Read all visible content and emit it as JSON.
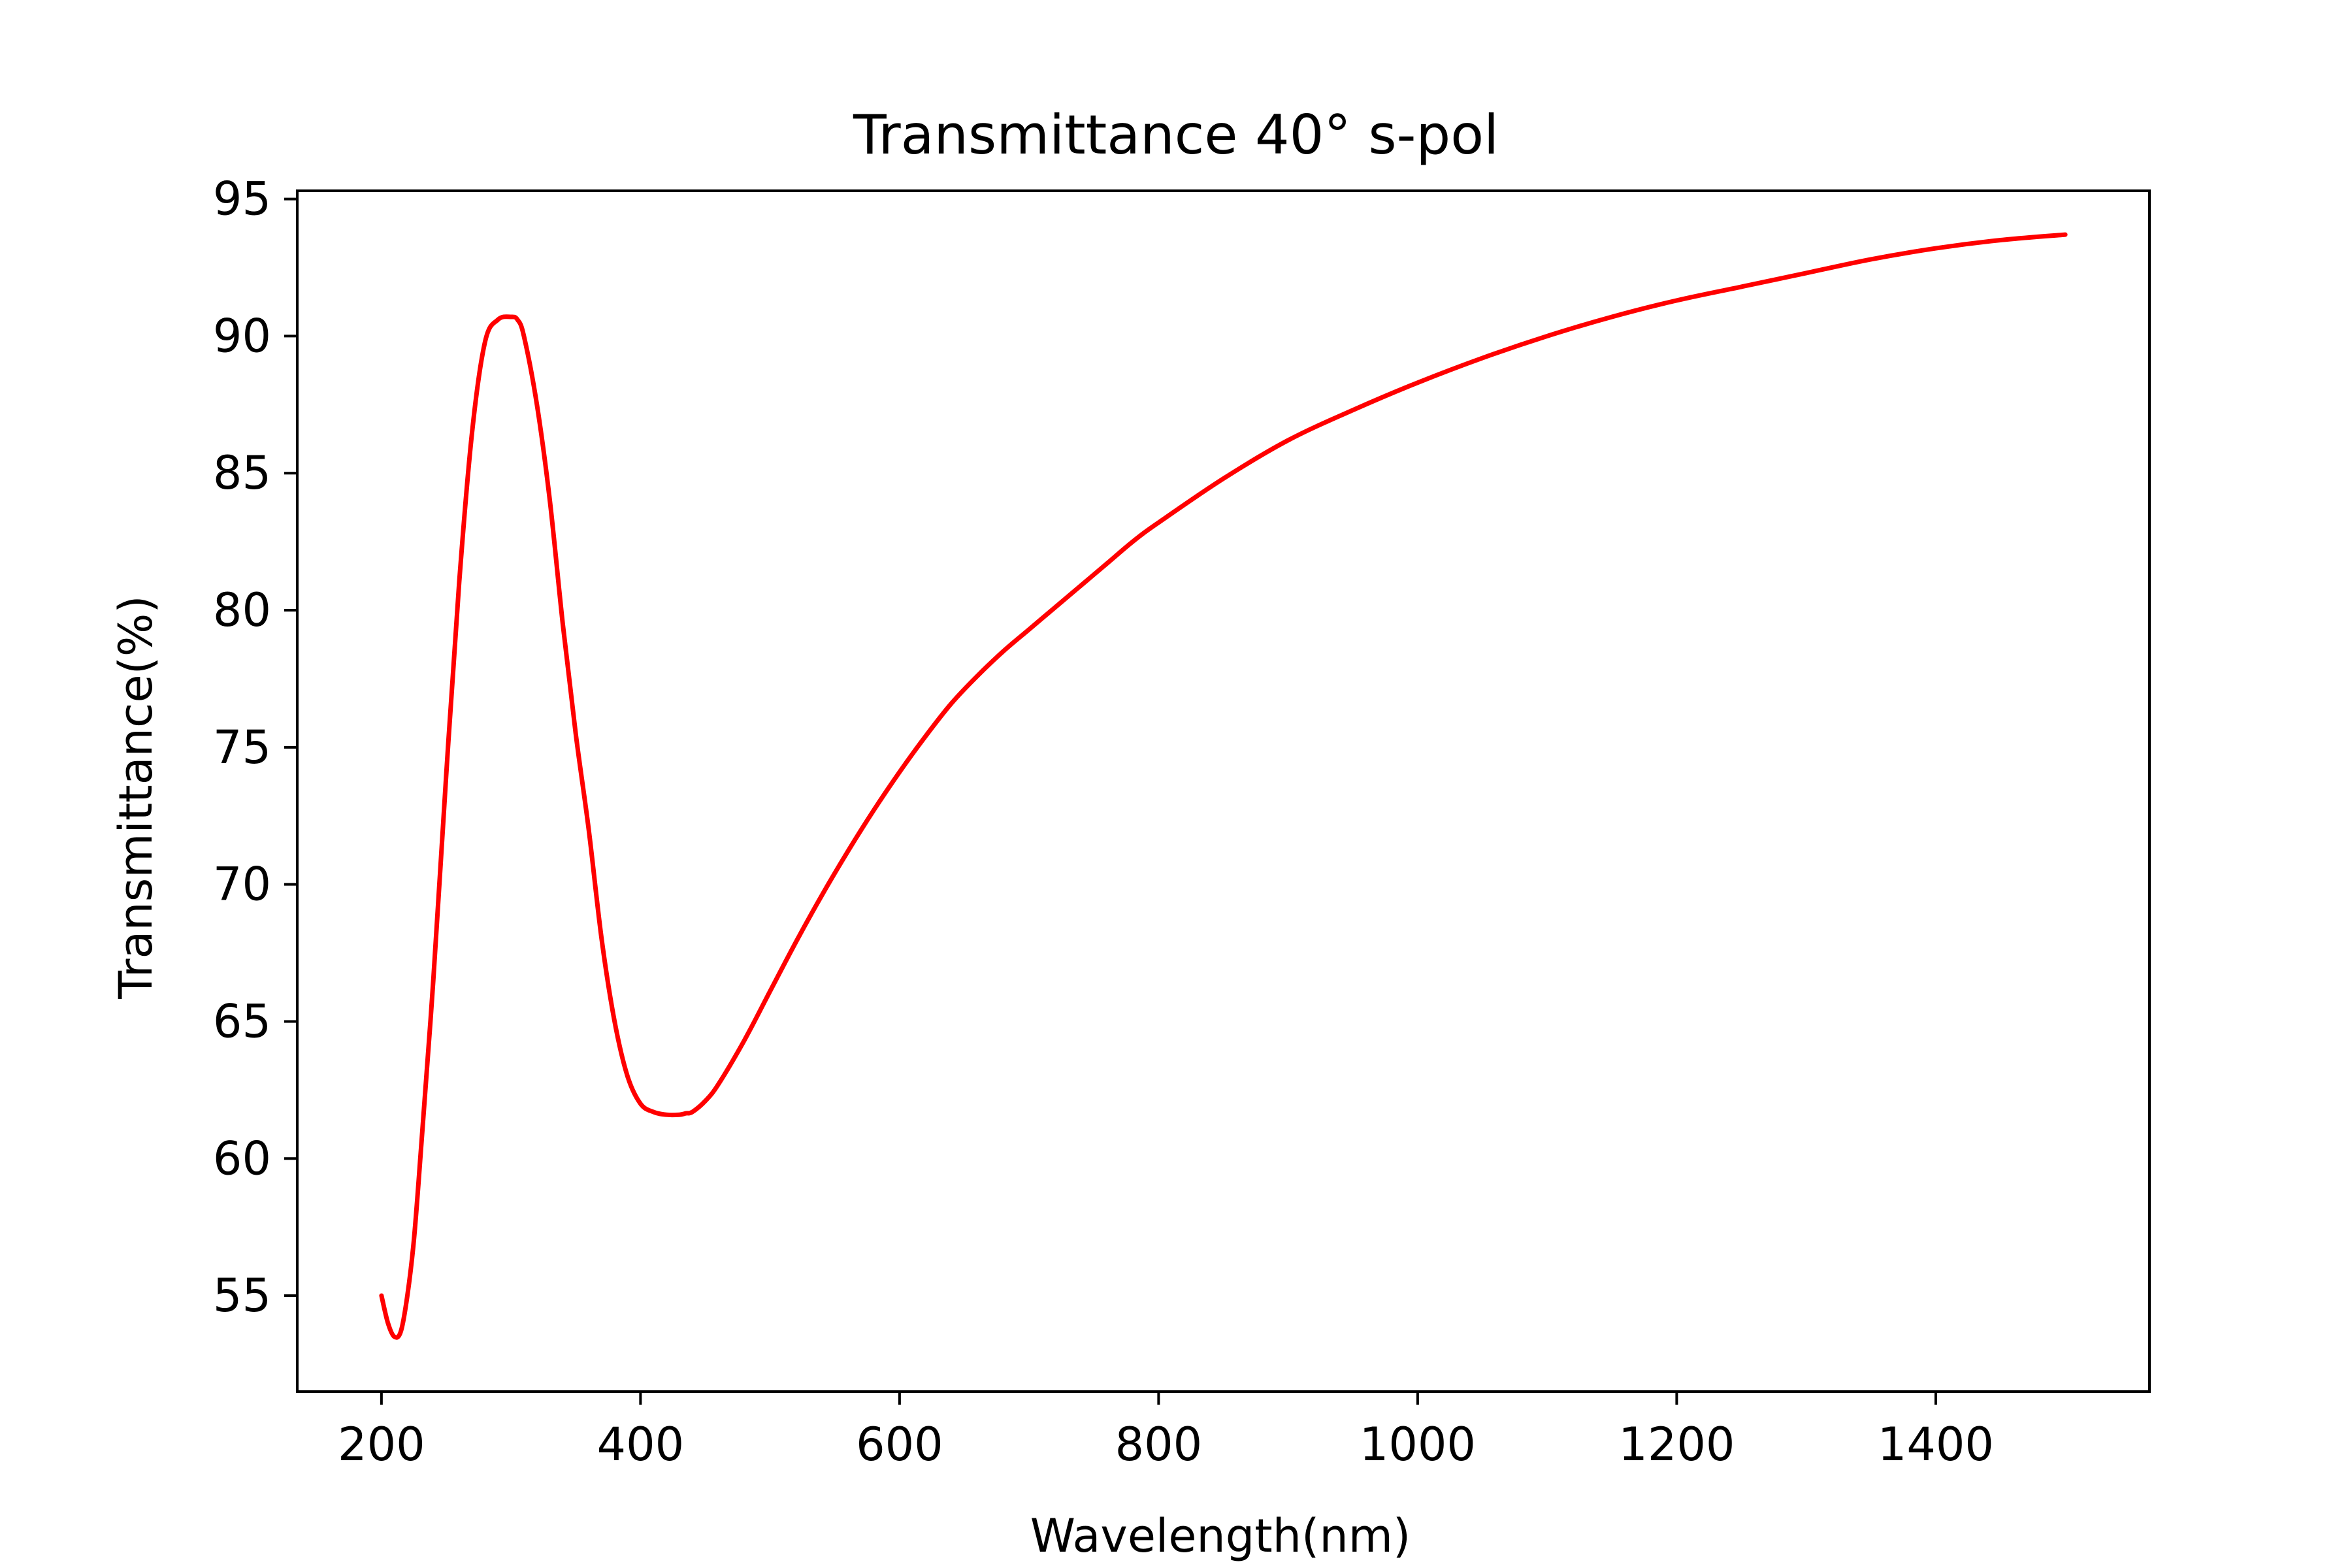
{
  "chart_data": {
    "type": "line",
    "title": "Transmittance 40° s-pol",
    "xlabel": "Wavelength(nm)",
    "ylabel": "Transmittance(%)",
    "xlim": [
      135,
      1565
    ],
    "ylim": [
      51.5,
      95.3
    ],
    "xticks": [
      200,
      400,
      600,
      800,
      1000,
      1200,
      1400
    ],
    "yticks": [
      55,
      60,
      65,
      70,
      75,
      80,
      85,
      90,
      95
    ],
    "grid": false,
    "legend": "none",
    "series": [
      {
        "color": "#ff0000",
        "x": [
          200,
          205,
          210,
          215,
          220,
          225,
          230,
          240,
          250,
          260,
          270,
          280,
          290,
          300,
          305,
          310,
          320,
          330,
          340,
          350,
          360,
          370,
          380,
          390,
          400,
          410,
          420,
          430,
          435,
          440,
          450,
          460,
          480,
          500,
          520,
          540,
          560,
          580,
          600,
          620,
          640,
          660,
          680,
          700,
          720,
          740,
          760,
          780,
          800,
          850,
          900,
          950,
          1000,
          1050,
          1100,
          1150,
          1200,
          1250,
          1300,
          1350,
          1400,
          1450,
          1500
        ],
        "y": [
          55.0,
          54.0,
          53.5,
          53.7,
          55.0,
          57.0,
          60.0,
          66.5,
          74.0,
          81.0,
          86.5,
          89.8,
          90.6,
          90.7,
          90.6,
          90.0,
          87.5,
          84.0,
          79.5,
          75.5,
          72.0,
          68.0,
          65.0,
          63.0,
          62.0,
          61.7,
          61.6,
          61.6,
          61.65,
          61.7,
          62.1,
          62.7,
          64.3,
          66.1,
          67.9,
          69.6,
          71.2,
          72.7,
          74.1,
          75.4,
          76.6,
          77.6,
          78.5,
          79.3,
          80.1,
          80.9,
          81.7,
          82.5,
          83.2,
          84.8,
          86.2,
          87.3,
          88.3,
          89.2,
          90.0,
          90.7,
          91.3,
          91.8,
          92.3,
          92.8,
          93.2,
          93.5,
          93.7
        ]
      }
    ]
  }
}
